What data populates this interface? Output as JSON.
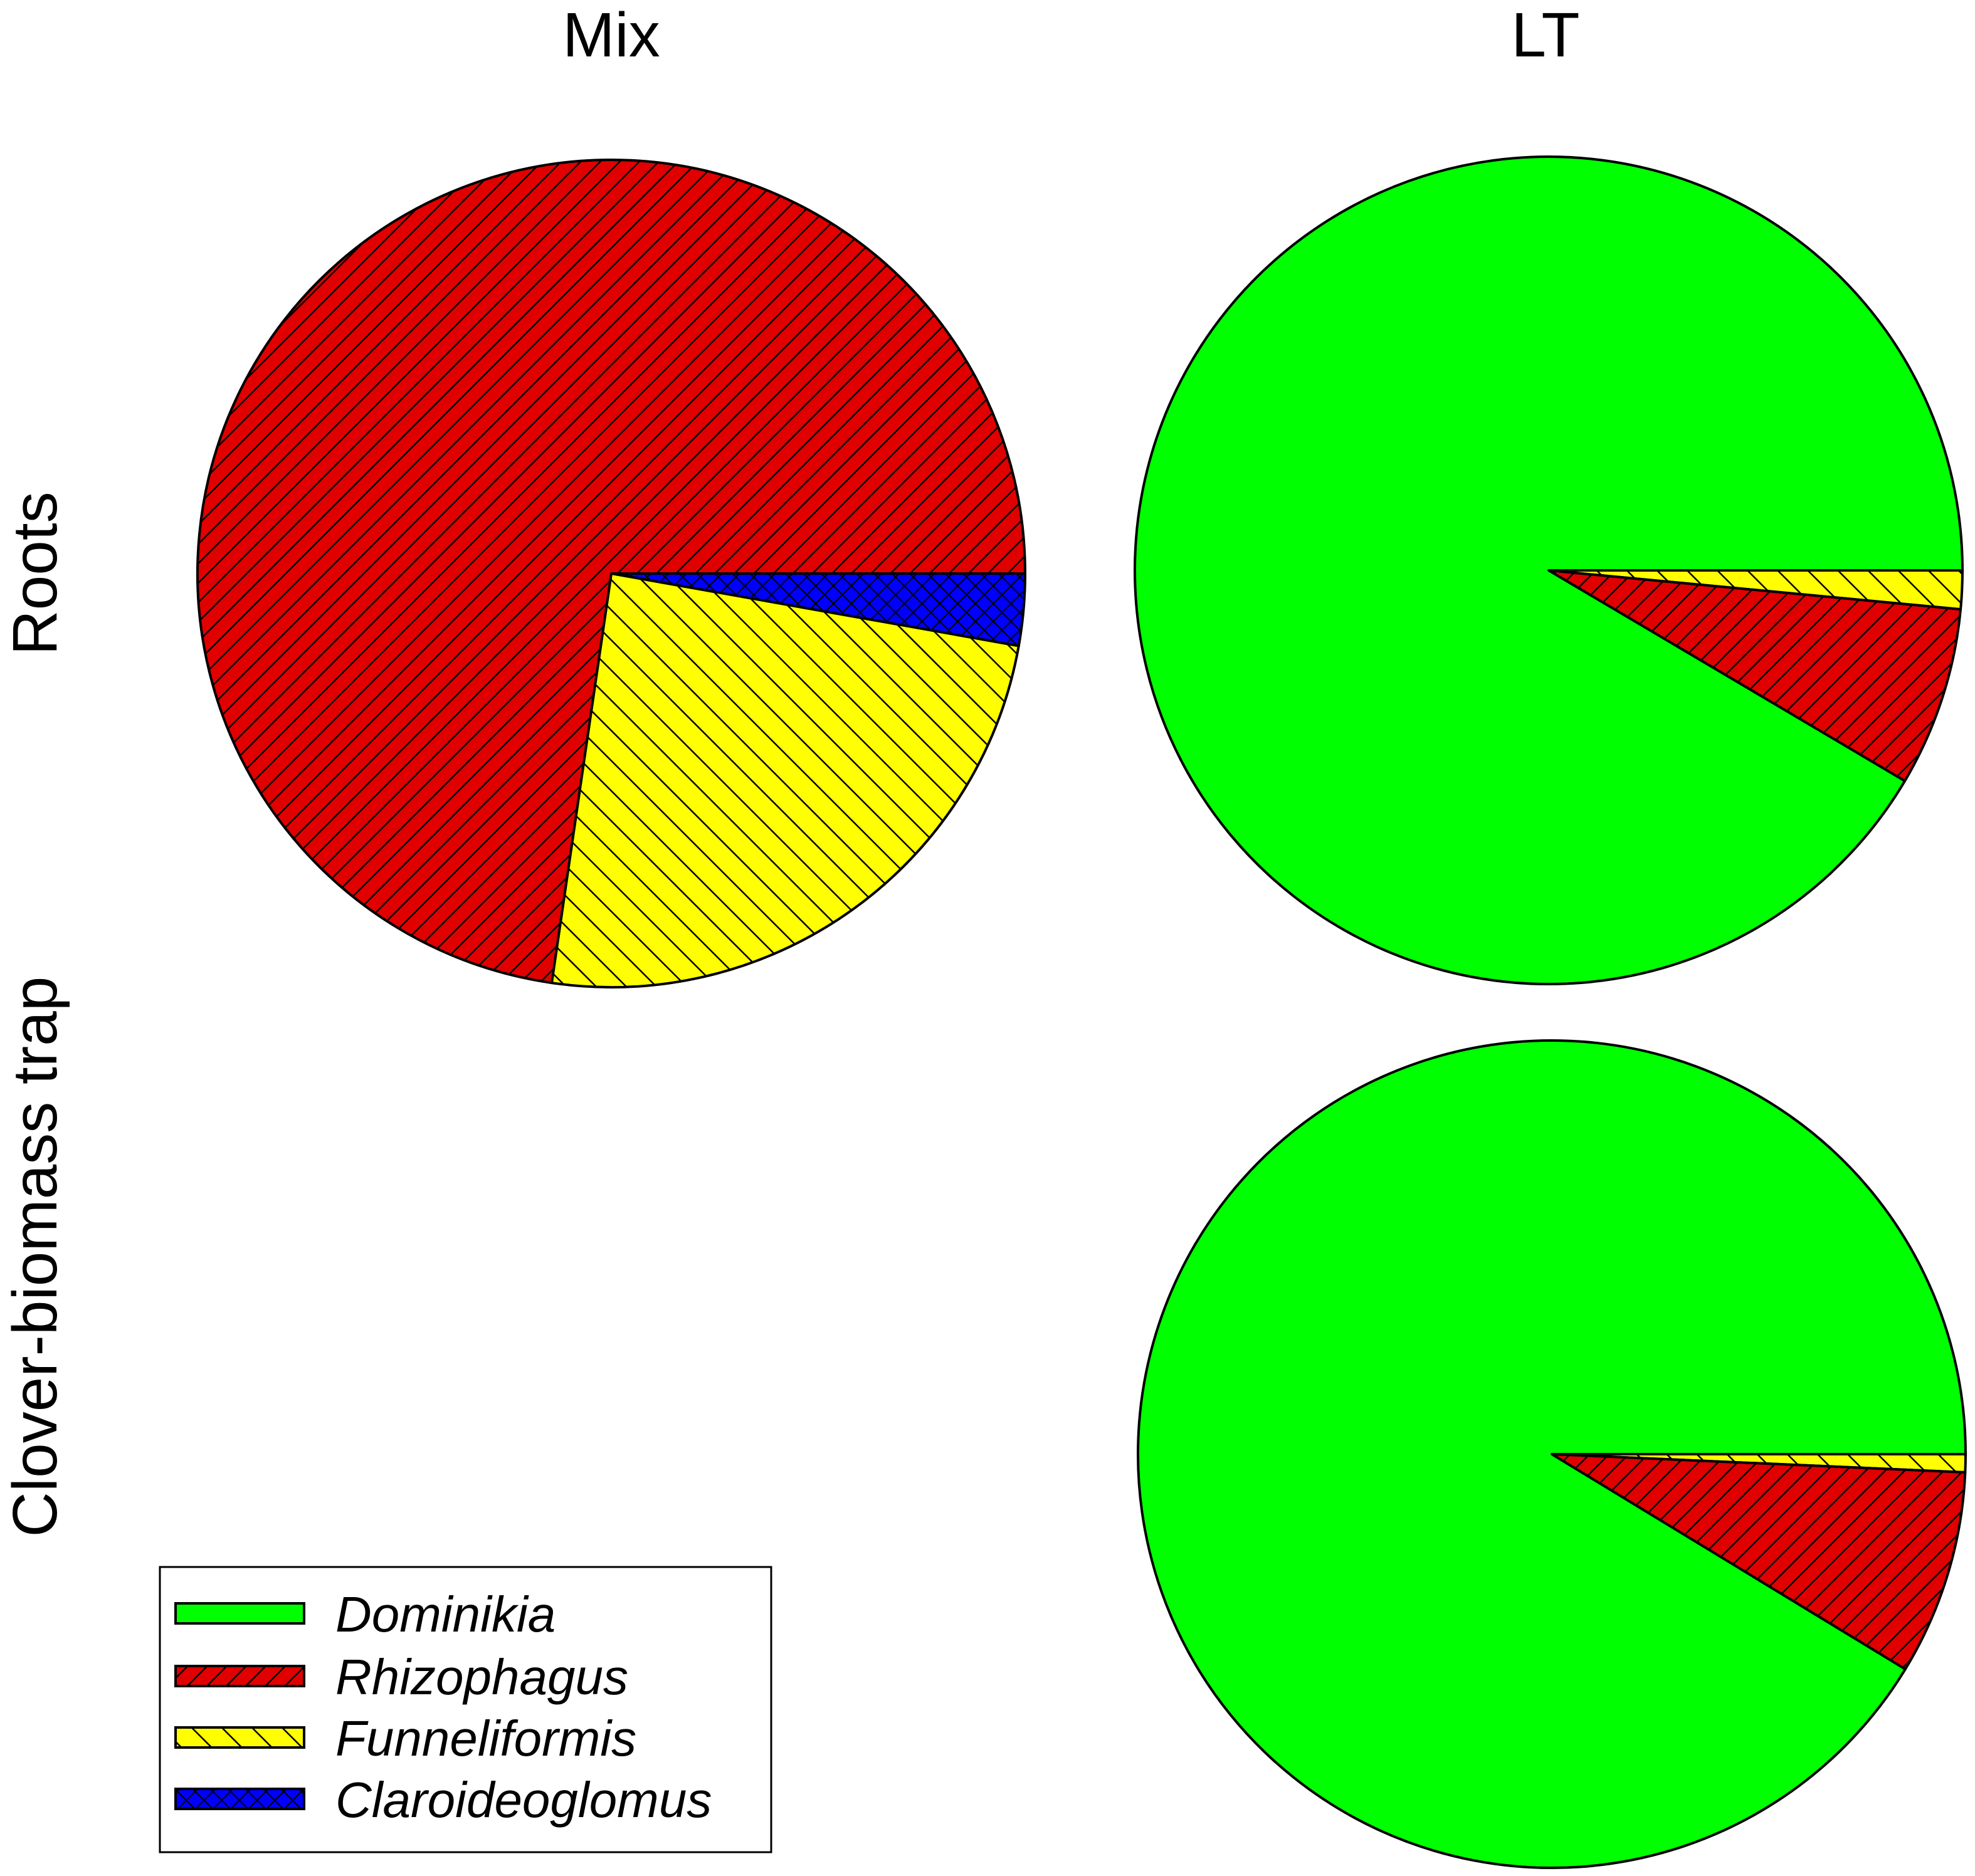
{
  "chart_data": [
    {
      "type": "pie",
      "column": "Mix",
      "row": "Roots",
      "start_angle_deg": 0,
      "direction": "clockwise",
      "slices": [
        {
          "label": "Dominikia",
          "value": 0.0
        },
        {
          "label": "Claroideoglomus",
          "value": 2.8
        },
        {
          "label": "Funneliformis",
          "value": 24.5
        },
        {
          "label": "Rhizophagus",
          "value": 72.7
        }
      ]
    },
    {
      "type": "pie",
      "column": "LT",
      "row": "Roots",
      "start_angle_deg": 0,
      "direction": "clockwise",
      "slices": [
        {
          "label": "Claroideoglomus",
          "value": 0.0
        },
        {
          "label": "Funneliformis",
          "value": 1.5
        },
        {
          "label": "Rhizophagus",
          "value": 7.0
        },
        {
          "label": "Dominikia",
          "value": 91.5
        }
      ]
    },
    {
      "type": "pie",
      "column": "LT",
      "row": "Clover-biomass trap",
      "start_angle_deg": 0,
      "direction": "clockwise",
      "slices": [
        {
          "label": "Claroideoglomus",
          "value": 0.0
        },
        {
          "label": "Funneliformis",
          "value": 0.7
        },
        {
          "label": "Rhizophagus",
          "value": 8.0
        },
        {
          "label": "Dominikia",
          "value": 91.3
        }
      ]
    }
  ],
  "column_labels": [
    "Mix",
    "LT"
  ],
  "row_labels": [
    "Roots",
    "Clover-biomass trap"
  ],
  "legend": {
    "placement": "bottom-left",
    "entries": [
      {
        "label": "Dominikia",
        "color": "#00FF00",
        "pattern": "solid"
      },
      {
        "label": "Rhizophagus",
        "color": "#E00000",
        "pattern": "hatch-steep"
      },
      {
        "label": "Funneliformis",
        "color": "#FFFF00",
        "pattern": "hatch-back"
      },
      {
        "label": "Claroideoglomus",
        "color": "#0000FF",
        "pattern": "crosshatch"
      }
    ]
  }
}
